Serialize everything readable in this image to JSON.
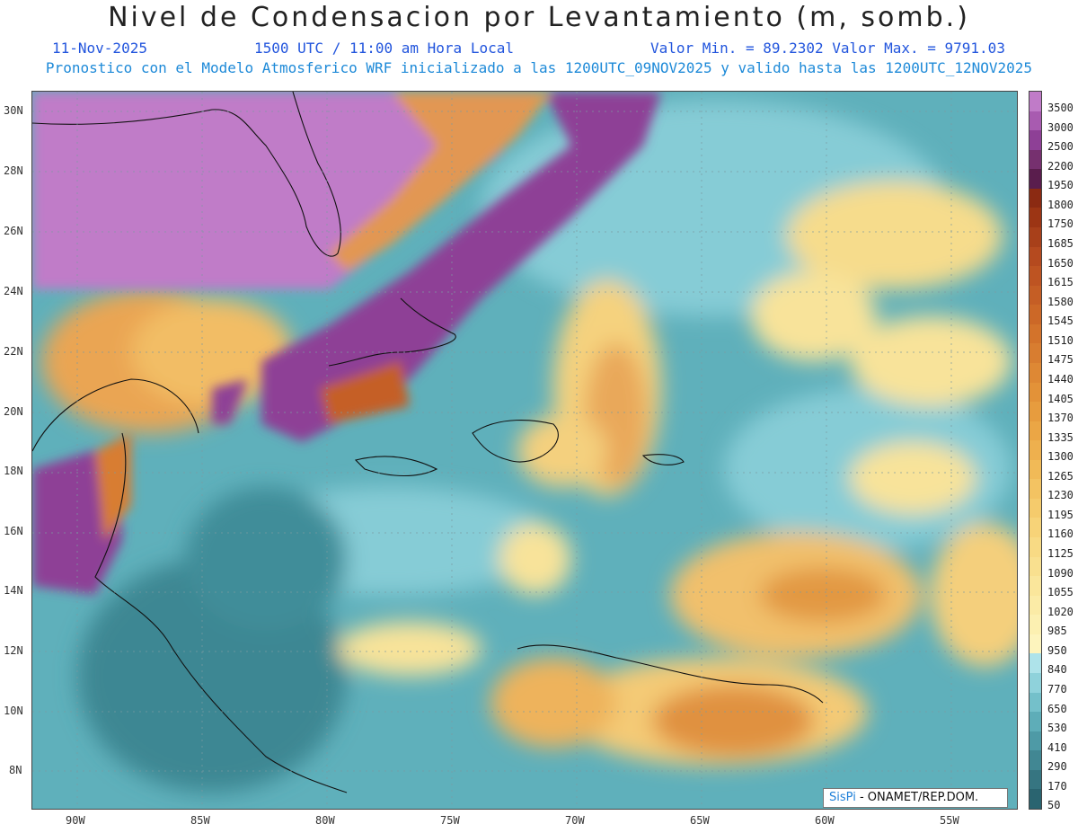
{
  "title": "Nivel de Condensacion por Levantamiento (m, somb.)",
  "date": "11-Nov-2025",
  "time": "1500 UTC / 11:00 am Hora Local",
  "stats": "Valor Min. = 89.2302  Valor Max. = 9791.03",
  "model_info": "Pronostico con el Modelo Atmosferico WRF inicializado a las 1200UTC_09NOV2025 y valido hasta las  1200UTC_12NOV2025",
  "lat_labels": [
    "30N",
    "28N",
    "26N",
    "24N",
    "22N",
    "20N",
    "18N",
    "16N",
    "14N",
    "12N",
    "10N",
    "8N"
  ],
  "lon_labels": [
    "90W",
    "85W",
    "80W",
    "75W",
    "70W",
    "65W",
    "60W",
    "55W"
  ],
  "colorbar": {
    "levels": [
      "3500",
      "3000",
      "2500",
      "2200",
      "1950",
      "1800",
      "1750",
      "1685",
      "1650",
      "1615",
      "1580",
      "1545",
      "1510",
      "1475",
      "1440",
      "1405",
      "1370",
      "1335",
      "1300",
      "1265",
      "1230",
      "1195",
      "1160",
      "1125",
      "1090",
      "1055",
      "1020",
      "985",
      "950",
      "840",
      "770",
      "650",
      "530",
      "410",
      "290",
      "170",
      "50"
    ],
    "colors": [
      "#c07bc8",
      "#a85bb0",
      "#8e4096",
      "#76306f",
      "#5a1d4d",
      "#8b2a12",
      "#9c3514",
      "#a8401a",
      "#b54a1f",
      "#be5422",
      "#c55e25",
      "#cc6827",
      "#d3732b",
      "#d87d30",
      "#de8834",
      "#e39238",
      "#e79c3e",
      "#eba645",
      "#eeb04e",
      "#f1ba57",
      "#f3c362",
      "#f5cb6c",
      "#f7d378",
      "#f8da84",
      "#f9e08f",
      "#fae69b",
      "#fbeba6",
      "#fcf0b1",
      "#fdf4bd",
      "#aee3ea",
      "#8fd2db",
      "#74c0ca",
      "#5eadb8",
      "#4e9aa6",
      "#418793",
      "#367581",
      "#2a6470"
    ]
  },
  "credit": {
    "brand": "SisPi",
    "text": "- ONAMET/REP.DOM."
  }
}
